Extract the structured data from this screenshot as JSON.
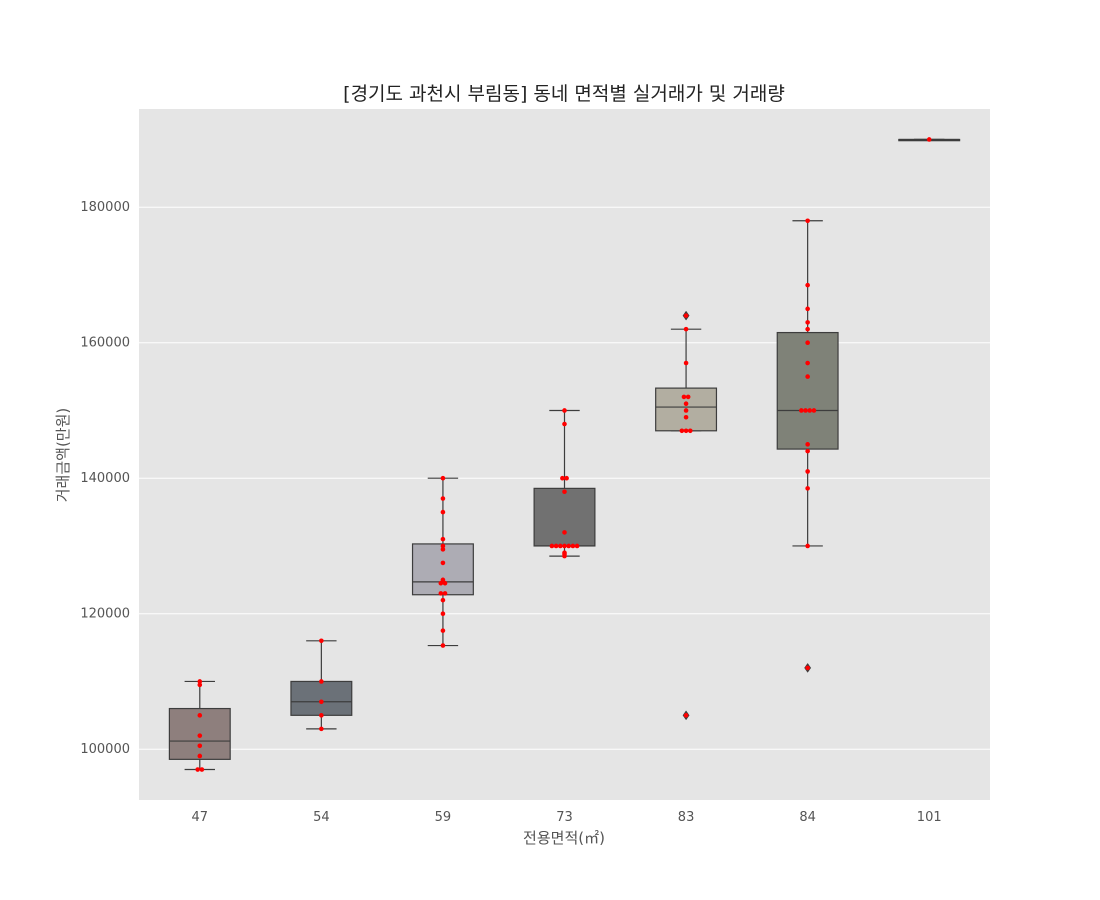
{
  "chart_data": {
    "type": "box",
    "title": "[경기도 과천시 부림동] 동네 면적별 실거래가 및 거래량",
    "xlabel": "전용면적(㎡)",
    "ylabel": "거래금액(만원)",
    "ylim": [
      92500,
      194500
    ],
    "yticks": [
      100000,
      120000,
      140000,
      160000,
      180000
    ],
    "ytick_labels": [
      "100000",
      "120000",
      "140000",
      "160000",
      "180000"
    ],
    "grid": true,
    "point_color": "#ff0000",
    "colors": {
      "plot_background": "#e5e5e5",
      "grid": "#ffffff",
      "box_edge": "#3d3d3d"
    },
    "categories": [
      {
        "label": "47",
        "box_color": "#8e7f7d",
        "whisker_low": 97000,
        "q1": 98500,
        "median": 101200,
        "q3": 106000,
        "whisker_high": 110000,
        "outliers": [],
        "points": [
          97000,
          97000,
          99000,
          100500,
          102000,
          105000,
          109500,
          110000
        ]
      },
      {
        "label": "54",
        "box_color": "#6b7178",
        "whisker_low": 103000,
        "q1": 105000,
        "median": 107000,
        "q3": 110000,
        "whisker_high": 116000,
        "outliers": [],
        "points": [
          103000,
          105000,
          107000,
          110000,
          116000
        ]
      },
      {
        "label": "59",
        "box_color": "#adacb4",
        "whisker_low": 115300,
        "q1": 122800,
        "median": 124700,
        "q3": 130300,
        "whisker_high": 140000,
        "outliers": [],
        "points": [
          115300,
          117500,
          120000,
          122000,
          123000,
          123000,
          124500,
          124500,
          125000,
          127500,
          129500,
          130000,
          131000,
          135000,
          137000,
          140000
        ]
      },
      {
        "label": "73",
        "box_color": "#717171",
        "whisker_low": 128500,
        "q1": 130000,
        "median": 130000,
        "q3": 138500,
        "whisker_high": 150000,
        "outliers": [],
        "points": [
          128500,
          128800,
          129000,
          130000,
          130000,
          130000,
          130000,
          130000,
          130000,
          130000,
          132000,
          138000,
          140000,
          140000,
          148000,
          150000
        ]
      },
      {
        "label": "83",
        "box_color": "#b2aea1",
        "whisker_low": 147000,
        "q1": 147000,
        "median": 150500,
        "q3": 153300,
        "whisker_high": 162000,
        "outliers": [
          105000,
          164000
        ],
        "points": [
          105000,
          147000,
          147000,
          147000,
          149000,
          150000,
          151000,
          152000,
          152000,
          157000,
          162000,
          164000
        ]
      },
      {
        "label": "84",
        "box_color": "#7f8278",
        "whisker_low": 130000,
        "q1": 144300,
        "median": 150000,
        "q3": 161500,
        "whisker_high": 178000,
        "outliers": [
          112000
        ],
        "points": [
          112000,
          130000,
          138500,
          141000,
          144000,
          145000,
          150000,
          150000,
          150000,
          150000,
          155000,
          157000,
          160000,
          162000,
          163000,
          165000,
          168500,
          178000
        ]
      },
      {
        "label": "101",
        "box_color": "#c9c4ad",
        "whisker_low": 190000,
        "q1": 190000,
        "median": 190000,
        "q3": 190000,
        "whisker_high": 190000,
        "outliers": [],
        "points": [
          190000
        ]
      }
    ]
  }
}
